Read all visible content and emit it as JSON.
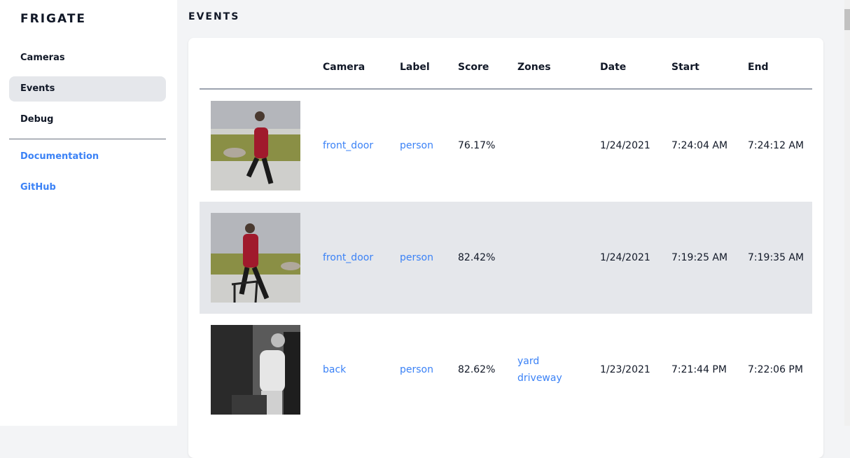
{
  "sidebar": {
    "brand": "FRIGATE",
    "items": [
      {
        "label": "Cameras",
        "active": false
      },
      {
        "label": "Events",
        "active": true
      },
      {
        "label": "Debug",
        "active": false
      }
    ],
    "links": [
      {
        "label": "Documentation"
      },
      {
        "label": "GitHub"
      }
    ]
  },
  "main": {
    "title": "EVENTS",
    "columns": [
      "Camera",
      "Label",
      "Score",
      "Zones",
      "Date",
      "Start",
      "End"
    ],
    "events": [
      {
        "camera": "front_door",
        "label": "person",
        "score": "76.17%",
        "zones": [
          "",
          ""
        ],
        "date": "1/24/2021",
        "start": "7:24:04 AM",
        "end": "7:24:12 AM"
      },
      {
        "camera": "front_door",
        "label": "person",
        "score": "82.42%",
        "zones": [
          "",
          ""
        ],
        "date": "1/24/2021",
        "start": "7:19:25 AM",
        "end": "7:19:35 AM"
      },
      {
        "camera": "back",
        "label": "person",
        "score": "82.62%",
        "zones": [
          "yard",
          "driveway"
        ],
        "date": "1/23/2021",
        "start": "7:21:44 PM",
        "end": "7:22:06 PM"
      }
    ]
  },
  "colors": {
    "accent": "#3b82f6",
    "active_bg": "#e5e7eb",
    "page_bg": "#f3f4f6"
  }
}
